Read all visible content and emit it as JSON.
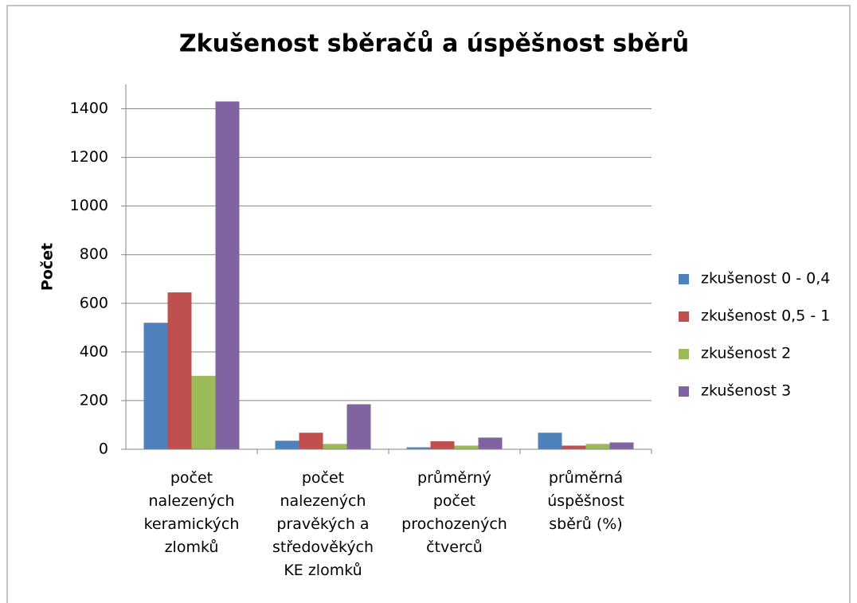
{
  "chart_data": {
    "type": "bar",
    "title": "Zkušenost sběračů a úspěšnost sběrů",
    "y_label": "Počet",
    "categories": [
      "počet\nnalezených\nkeramických\nzlomků",
      "počet\nnalezených\npravěkých a\nstředověkých\nKE zlomků",
      "průměrný\npočet\nprochozených\nčtverců",
      "průměrná\núspěšnost\nsběrů (%)"
    ],
    "series": [
      {
        "name": "zkušenost 0 - 0,4",
        "color": "#4f81bd",
        "values": [
          520,
          35,
          8,
          68
        ]
      },
      {
        "name": "zkušenost 0,5 - 1",
        "color": "#c0504d",
        "values": [
          645,
          68,
          33,
          15
        ]
      },
      {
        "name": "zkušenost 2",
        "color": "#9bbb59",
        "values": [
          302,
          22,
          15,
          22
        ]
      },
      {
        "name": "zkušenost 3",
        "color": "#8064a2",
        "values": [
          1430,
          185,
          48,
          28
        ]
      }
    ],
    "ylim": [
      0,
      1500
    ],
    "yticks": [
      0,
      200,
      400,
      600,
      800,
      1000,
      1200,
      1400
    ],
    "grid": true,
    "legend": "right"
  }
}
